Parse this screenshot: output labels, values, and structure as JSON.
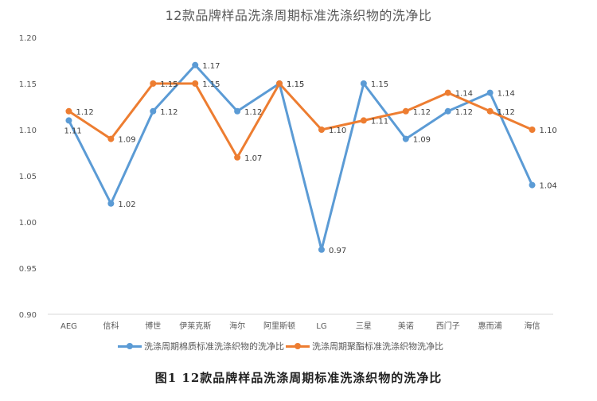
{
  "chart_data": {
    "type": "line",
    "title": "12款品牌样品洗涤周期标准洗涤织物的洗净比",
    "xlabel": "",
    "ylabel": "",
    "ylim": [
      0.9,
      1.2
    ],
    "yticks": [
      "0.90",
      "0.95",
      "1.00",
      "1.05",
      "1.10",
      "1.15",
      "1.20"
    ],
    "grid": false,
    "legend_position": "bottom",
    "categories": [
      "AEG",
      "信科",
      "博世",
      "伊莱克斯",
      "海尔",
      "阿里斯顿",
      "LG",
      "三星",
      "美诺",
      "西门子",
      "惠而浦",
      "海信"
    ],
    "series": [
      {
        "name": "洗涤周期棉质标准洗涤织物的洗净比",
        "color": "#5B9BD5",
        "values": [
          1.11,
          1.02,
          1.12,
          1.17,
          1.12,
          1.15,
          0.97,
          1.15,
          1.09,
          1.12,
          1.14,
          1.04
        ],
        "labels": [
          "1.11",
          "1.02",
          "1.12",
          "1.17",
          "1.12",
          "1.15",
          "0.97",
          "1.15",
          "1.09",
          "1.12",
          "1.14",
          "1.04"
        ]
      },
      {
        "name": "洗涤周期聚酯标准洗涤织物洗净比",
        "color": "#ED7D31",
        "values": [
          1.12,
          1.09,
          1.15,
          1.15,
          1.07,
          1.15,
          1.1,
          1.11,
          1.12,
          1.14,
          1.12,
          1.1
        ],
        "labels": [
          "1.12",
          "1.09",
          "1.15",
          "1.15",
          "1.07",
          "1.15",
          "1.10",
          "1.11",
          "1.12",
          "1.14",
          "1.12",
          "1.10"
        ]
      }
    ]
  },
  "caption": "图1  12款品牌样品洗涤周期标准洗涤织物的洗净比"
}
